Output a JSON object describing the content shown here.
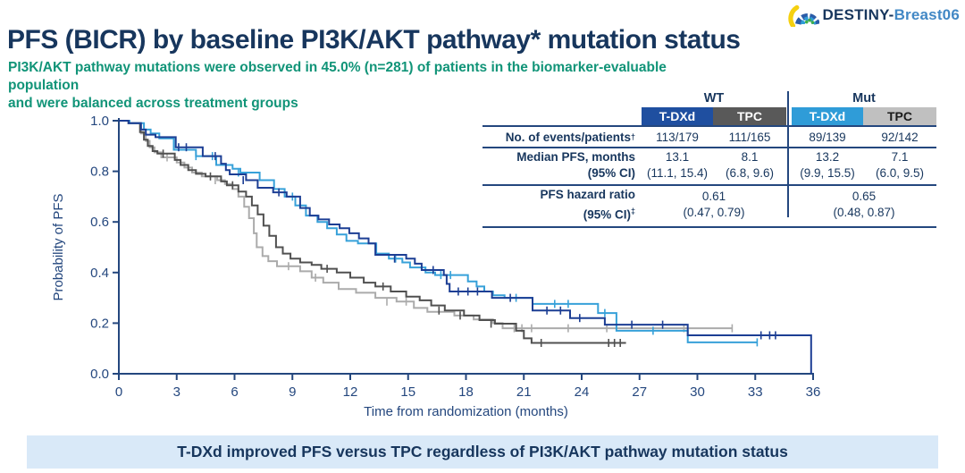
{
  "logo": {
    "brand_bold": "DESTINY-",
    "brand_light": "Breast06"
  },
  "header": {
    "title": "PFS (BICR) by baseline PI3K/AKT pathway* mutation status",
    "subtitle_line1": "PI3K/AKT pathway mutations were observed in 45.0% (n=281) of patients in the biomarker-evaluable population",
    "subtitle_line2": "and were balanced across treatment groups"
  },
  "table": {
    "group_headers": [
      "WT",
      "Mut"
    ],
    "col_headers": [
      "T-DXd",
      "TPC",
      "T-DXd",
      "TPC"
    ],
    "events_label": "No. of events/patients",
    "events_sup": "†",
    "events_values": [
      "113/179",
      "111/165",
      "89/139",
      "92/142"
    ],
    "median_label": "Median PFS, months",
    "median_ci_label": "(95% CI)",
    "median_values": [
      "13.1",
      "8.1",
      "13.2",
      "7.1"
    ],
    "median_ci_values": [
      "(11.1, 15.4)",
      "(6.8, 9.6)",
      "(9.9, 15.5)",
      "(6.0, 9.5)"
    ],
    "hr_label": "PFS hazard ratio",
    "hr_ci_label": "(95% CI)",
    "hr_ci_sup": "‡",
    "hr_values": [
      "0.61",
      "0.65"
    ],
    "hr_ci_values": [
      "(0.47, 0.79)",
      "(0.48, 0.87)"
    ]
  },
  "banner": {
    "text": "T-DXd improved PFS versus TPC regardless of PI3K/AKT pathway mutation status"
  },
  "colors": {
    "navy_text": "#17365D",
    "axis": "#24477E",
    "green": "#119478",
    "tdxd_wt": "#1C3E94",
    "tpc_wt": "#505050",
    "tdxd_mut": "#37A1D9",
    "tpc_mut": "#ABABAB",
    "banner_bg": "#D9E9F8"
  },
  "chart_data": {
    "type": "line",
    "subtype": "kaplan-meier-step",
    "title": "",
    "xlabel": "Time from randomization (months)",
    "ylabel": "Probability of PFS",
    "xlim": [
      0,
      36
    ],
    "ylim": [
      0.0,
      1.0
    ],
    "xticks": [
      0,
      3,
      6,
      9,
      12,
      15,
      18,
      21,
      24,
      27,
      30,
      33,
      36
    ],
    "yticks": [
      0.0,
      0.2,
      0.4,
      0.6,
      0.8,
      1.0
    ],
    "grid": false,
    "legend": "none (series identified by table header colors)",
    "series": [
      {
        "name": "TPC (Mut)",
        "color_key": "tpc_mut",
        "end": 31.8,
        "points": [
          [
            0,
            1.0
          ],
          [
            0.5,
            0.99
          ],
          [
            1.15,
            0.95
          ],
          [
            1.4,
            0.92
          ],
          [
            1.6,
            0.895
          ],
          [
            1.85,
            0.875
          ],
          [
            2.2,
            0.855
          ],
          [
            3.0,
            0.835
          ],
          [
            3.4,
            0.815
          ],
          [
            3.8,
            0.795
          ],
          [
            4.3,
            0.78
          ],
          [
            5.1,
            0.765
          ],
          [
            5.5,
            0.75
          ],
          [
            5.9,
            0.73
          ],
          [
            6.2,
            0.7
          ],
          [
            6.5,
            0.66
          ],
          [
            6.75,
            0.615
          ],
          [
            7.0,
            0.555
          ],
          [
            7.15,
            0.5
          ],
          [
            7.45,
            0.465
          ],
          [
            7.75,
            0.445
          ],
          [
            8.2,
            0.425
          ],
          [
            9.4,
            0.405
          ],
          [
            10.0,
            0.38
          ],
          [
            10.6,
            0.36
          ],
          [
            11.4,
            0.335
          ],
          [
            12.3,
            0.32
          ],
          [
            13.3,
            0.3
          ],
          [
            14.4,
            0.285
          ],
          [
            15.3,
            0.26
          ],
          [
            16.0,
            0.245
          ],
          [
            17.4,
            0.23
          ],
          [
            18.4,
            0.215
          ],
          [
            19.4,
            0.2
          ],
          [
            19.9,
            0.18
          ]
        ],
        "censors": [
          [
            2.5,
            0.855
          ],
          [
            5.0,
            0.765
          ],
          [
            8.8,
            0.425
          ],
          [
            10.2,
            0.38
          ],
          [
            13.9,
            0.285
          ],
          [
            14.9,
            0.285
          ],
          [
            20.5,
            0.18
          ],
          [
            20.9,
            0.18
          ],
          [
            21.4,
            0.18
          ],
          [
            23.3,
            0.18
          ],
          [
            25.3,
            0.18
          ],
          [
            29.3,
            0.18
          ],
          [
            31.8,
            0.18
          ]
        ]
      },
      {
        "name": "TPC (WT)",
        "color_key": "tpc_wt",
        "end": 26.3,
        "points": [
          [
            0,
            1.0
          ],
          [
            0.5,
            0.99
          ],
          [
            1.1,
            0.955
          ],
          [
            1.3,
            0.925
          ],
          [
            1.5,
            0.9
          ],
          [
            1.75,
            0.88
          ],
          [
            2.0,
            0.87
          ],
          [
            2.9,
            0.845
          ],
          [
            3.2,
            0.825
          ],
          [
            3.6,
            0.805
          ],
          [
            4.0,
            0.79
          ],
          [
            4.5,
            0.78
          ],
          [
            5.3,
            0.76
          ],
          [
            5.6,
            0.745
          ],
          [
            6.2,
            0.72
          ],
          [
            6.6,
            0.7
          ],
          [
            6.9,
            0.665
          ],
          [
            7.2,
            0.63
          ],
          [
            7.5,
            0.585
          ],
          [
            7.8,
            0.545
          ],
          [
            8.15,
            0.5
          ],
          [
            8.5,
            0.475
          ],
          [
            8.9,
            0.455
          ],
          [
            9.4,
            0.44
          ],
          [
            10.0,
            0.43
          ],
          [
            10.5,
            0.415
          ],
          [
            11.3,
            0.4
          ],
          [
            12.0,
            0.38
          ],
          [
            12.7,
            0.36
          ],
          [
            13.3,
            0.345
          ],
          [
            14.1,
            0.325
          ],
          [
            14.9,
            0.305
          ],
          [
            15.6,
            0.29
          ],
          [
            16.2,
            0.27
          ],
          [
            16.9,
            0.25
          ],
          [
            17.9,
            0.23
          ],
          [
            18.7,
            0.212
          ],
          [
            19.5,
            0.198
          ],
          [
            20.6,
            0.17
          ],
          [
            21.0,
            0.14
          ],
          [
            21.4,
            0.122
          ]
        ],
        "censors": [
          [
            2.3,
            0.87
          ],
          [
            4.75,
            0.78
          ],
          [
            5.9,
            0.745
          ],
          [
            10.8,
            0.415
          ],
          [
            13.7,
            0.345
          ],
          [
            16.6,
            0.25
          ],
          [
            17.7,
            0.23
          ],
          [
            19.3,
            0.198
          ],
          [
            21.9,
            0.122
          ],
          [
            25.4,
            0.122
          ],
          [
            25.7,
            0.122
          ],
          [
            26.0,
            0.122
          ]
        ]
      },
      {
        "name": "T-DXd (Mut)",
        "color_key": "tdxd_mut",
        "end": 33.1,
        "points": [
          [
            0,
            1.0
          ],
          [
            0.55,
            0.99
          ],
          [
            1.3,
            0.965
          ],
          [
            1.65,
            0.95
          ],
          [
            2.1,
            0.93
          ],
          [
            2.85,
            0.885
          ],
          [
            4.0,
            0.86
          ],
          [
            5.05,
            0.825
          ],
          [
            5.9,
            0.81
          ],
          [
            6.3,
            0.795
          ],
          [
            7.3,
            0.765
          ],
          [
            8.05,
            0.73
          ],
          [
            8.6,
            0.7
          ],
          [
            9.15,
            0.665
          ],
          [
            9.7,
            0.625
          ],
          [
            10.3,
            0.6
          ],
          [
            10.8,
            0.575
          ],
          [
            11.3,
            0.55
          ],
          [
            11.8,
            0.525
          ],
          [
            12.4,
            0.515
          ],
          [
            13.35,
            0.475
          ],
          [
            14.0,
            0.455
          ],
          [
            14.7,
            0.44
          ],
          [
            15.1,
            0.42
          ],
          [
            15.9,
            0.4
          ],
          [
            16.4,
            0.39
          ],
          [
            18.1,
            0.365
          ],
          [
            18.55,
            0.345
          ],
          [
            18.95,
            0.325
          ],
          [
            19.4,
            0.31
          ],
          [
            20.0,
            0.3
          ],
          [
            21.45,
            0.276
          ],
          [
            24.85,
            0.24
          ],
          [
            25.8,
            0.17
          ],
          [
            29.5,
            0.124
          ]
        ],
        "censors": [
          [
            4.0,
            0.86
          ],
          [
            4.85,
            0.86
          ],
          [
            6.2,
            0.795
          ],
          [
            9.0,
            0.7
          ],
          [
            14.35,
            0.455
          ],
          [
            16.7,
            0.39
          ],
          [
            17.2,
            0.39
          ],
          [
            20.6,
            0.3
          ],
          [
            22.6,
            0.276
          ],
          [
            23.3,
            0.276
          ],
          [
            25.2,
            0.24
          ],
          [
            27.7,
            0.17
          ],
          [
            33.1,
            0.124
          ]
        ]
      },
      {
        "name": "T-DXd (WT)",
        "color_key": "tdxd_wt",
        "end": 35.9,
        "points": [
          [
            0,
            1.0
          ],
          [
            0.5,
            0.99
          ],
          [
            1.15,
            0.965
          ],
          [
            1.4,
            0.945
          ],
          [
            1.9,
            0.935
          ],
          [
            2.95,
            0.895
          ],
          [
            4.35,
            0.86
          ],
          [
            5.3,
            0.83
          ],
          [
            5.55,
            0.805
          ],
          [
            5.75,
            0.788
          ],
          [
            6.6,
            0.765
          ],
          [
            7.2,
            0.735
          ],
          [
            8.0,
            0.717
          ],
          [
            8.7,
            0.7
          ],
          [
            9.4,
            0.655
          ],
          [
            9.9,
            0.625
          ],
          [
            10.35,
            0.61
          ],
          [
            10.9,
            0.59
          ],
          [
            11.45,
            0.575
          ],
          [
            11.95,
            0.555
          ],
          [
            12.45,
            0.535
          ],
          [
            12.95,
            0.515
          ],
          [
            13.3,
            0.47
          ],
          [
            14.9,
            0.455
          ],
          [
            15.35,
            0.435
          ],
          [
            15.7,
            0.41
          ],
          [
            16.85,
            0.39
          ],
          [
            17.0,
            0.355
          ],
          [
            17.15,
            0.325
          ],
          [
            19.35,
            0.3
          ],
          [
            21.45,
            0.25
          ],
          [
            23.4,
            0.22
          ],
          [
            25.2,
            0.194
          ],
          [
            29.5,
            0.152
          ],
          [
            35.9,
            0.0
          ]
        ],
        "censors": [
          [
            3.1,
            0.895
          ],
          [
            3.5,
            0.895
          ],
          [
            5.0,
            0.86
          ],
          [
            6.45,
            0.765
          ],
          [
            8.3,
            0.717
          ],
          [
            14.3,
            0.455
          ],
          [
            16.3,
            0.41
          ],
          [
            17.6,
            0.325
          ],
          [
            18.1,
            0.325
          ],
          [
            18.6,
            0.325
          ],
          [
            20.3,
            0.3
          ],
          [
            22.2,
            0.25
          ],
          [
            22.9,
            0.25
          ],
          [
            23.9,
            0.22
          ],
          [
            26.6,
            0.194
          ],
          [
            28.2,
            0.194
          ],
          [
            33.3,
            0.152
          ],
          [
            33.75,
            0.152
          ],
          [
            34.05,
            0.152
          ]
        ]
      }
    ]
  }
}
